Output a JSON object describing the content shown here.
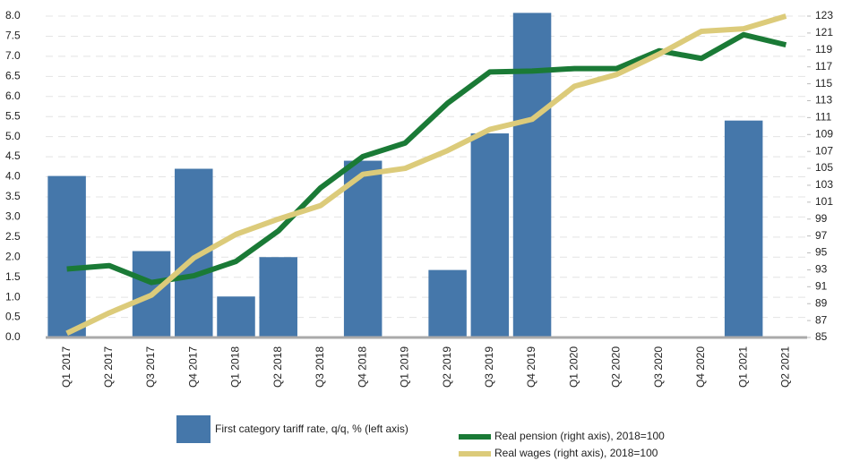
{
  "chart_data": {
    "type": "combo",
    "categories": [
      "Q1 2017",
      "Q2 2017",
      "Q3 2017",
      "Q4 2017",
      "Q1 2018",
      "Q2 2018",
      "Q3 2018",
      "Q4 2018",
      "Q1 2019",
      "Q2 2019",
      "Q3 2019",
      "Q4 2019",
      "Q1 2020",
      "Q2 2020",
      "Q3 2020",
      "Q4 2020",
      "Q1 2021",
      "Q2 2021"
    ],
    "series": [
      {
        "name": "First category tariff rate, q/q, % (left axis)",
        "type": "bar",
        "color": "#4577aa",
        "axis": "y",
        "values": [
          4.02,
          null,
          2.15,
          4.2,
          1.02,
          2.0,
          null,
          4.4,
          null,
          1.68,
          5.08,
          8.08,
          null,
          null,
          null,
          null,
          5.4,
          null
        ]
      },
      {
        "name": "Real pension (right axis), 2018=100",
        "type": "line",
        "color": "#1a7a36",
        "axis": "y2",
        "values": [
          93.1,
          93.5,
          91.5,
          92.3,
          94.0,
          97.6,
          102.7,
          106.4,
          108.0,
          112.7,
          116.4,
          116.5,
          116.8,
          116.8,
          118.9,
          118.0,
          120.8,
          119.6
        ]
      },
      {
        "name": "Real wages (right axis), 2018=100",
        "type": "line",
        "color": "#dccb7a",
        "axis": "y2",
        "values": [
          85.5,
          87.9,
          90.0,
          94.4,
          97.2,
          99.0,
          100.6,
          104.3,
          105.0,
          107.1,
          109.6,
          110.8,
          114.7,
          116.1,
          118.5,
          121.2,
          121.5,
          123.0
        ]
      }
    ],
    "ylim": [
      0,
      8
    ],
    "yticks": [
      {
        "value": 0,
        "label": "0.0"
      },
      0.5,
      {
        "value": 1,
        "label": "1.0"
      },
      1.5,
      {
        "value": 2,
        "label": "2.0"
      },
      2.5,
      {
        "value": 3,
        "label": "3.0"
      },
      3.5,
      {
        "value": 4,
        "label": "4.0"
      },
      4.5,
      {
        "value": 5,
        "label": "5.0"
      },
      5.5,
      {
        "value": 6,
        "label": "6.0"
      },
      6.5,
      {
        "value": 7,
        "label": "7.0"
      },
      7.5,
      {
        "value": 8,
        "label": "8.0"
      }
    ],
    "y2lim": [
      85,
      123
    ],
    "y2ticks": [
      85,
      87,
      89,
      91,
      93,
      95,
      97,
      99,
      101,
      103,
      105,
      107,
      109,
      111,
      113,
      115,
      117,
      119,
      121,
      123
    ],
    "grid": true
  }
}
